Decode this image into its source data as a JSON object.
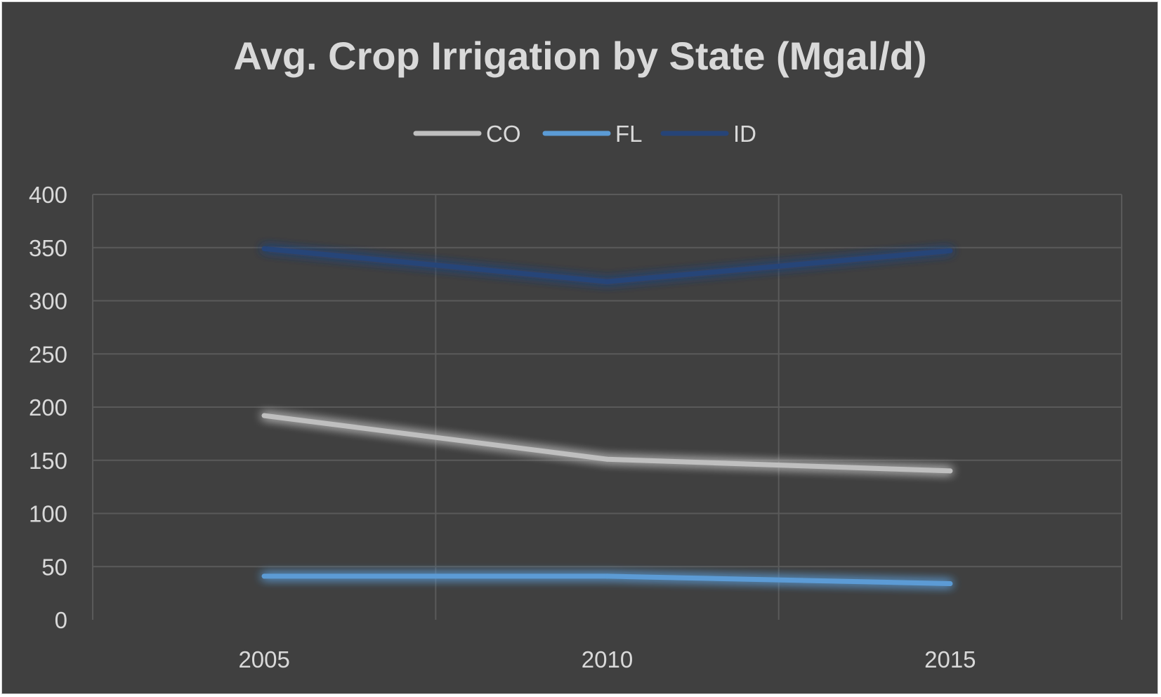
{
  "chart_data": {
    "type": "line",
    "title": "Avg. Crop Irrigation by State (Mgal/d)",
    "xlabel": "",
    "ylabel": "",
    "categories": [
      "2005",
      "2010",
      "2015"
    ],
    "ylim": [
      0,
      400
    ],
    "yticks": [
      0,
      50,
      100,
      150,
      200,
      250,
      300,
      350,
      400
    ],
    "grid": true,
    "legend_position": "top",
    "series": [
      {
        "name": "CO",
        "values": [
          192,
          151,
          140
        ],
        "color": "#bfbfbf"
      },
      {
        "name": "FL",
        "values": [
          41,
          41,
          34
        ],
        "color": "#5b9bd5"
      },
      {
        "name": "ID",
        "values": [
          349,
          318,
          347
        ],
        "color": "#264478"
      }
    ]
  }
}
